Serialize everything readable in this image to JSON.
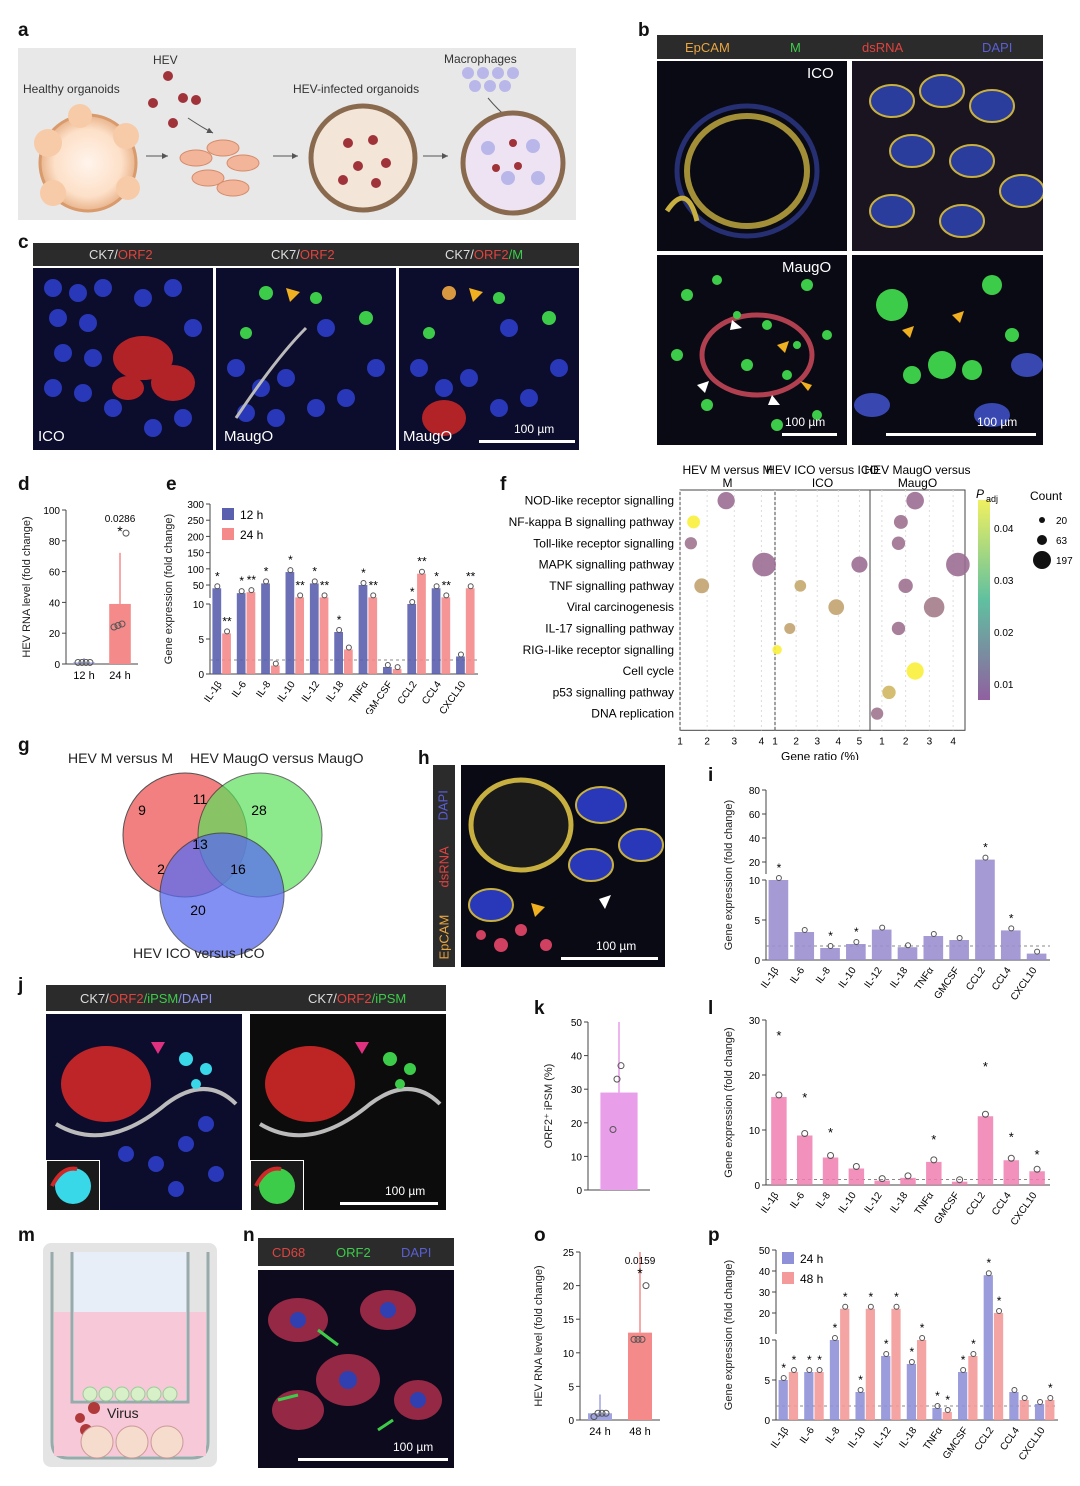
{
  "panels": {
    "a": "a",
    "b": "b",
    "c": "c",
    "d": "d",
    "e": "e",
    "f": "f",
    "g": "g",
    "h": "h",
    "i": "i",
    "j": "j",
    "k": "k",
    "l": "l",
    "m": "m",
    "n": "n",
    "o": "o",
    "p": "p"
  },
  "panel_a": {
    "healthy": "Healthy organoids",
    "hev": "HEV",
    "infected": "HEV-infected organoids",
    "macrophages": "Macrophages"
  },
  "panel_b": {
    "ch1": "EpCAM",
    "ch2": "M",
    "ch3": "dsRNA",
    "ch4": "DAPI",
    "ico": "ICO",
    "maugo": "MaugO",
    "scale1": "100 µm",
    "scale2": "100 µm"
  },
  "panel_c": {
    "h1_a": "CK7/",
    "h1_b": "ORF2",
    "h2_a": "CK7/",
    "h2_b": "ORF2",
    "h3_a": "CK7/",
    "h3_b": "ORF2",
    "h3_c": "/M",
    "l1": "ICO",
    "l2": "MaugO",
    "l3": "MaugO",
    "scale": "100 µm"
  },
  "panel_h": {
    "c1": "DAPI",
    "c2": "dsRNA",
    "c3": "EpCAM",
    "scale": "100 µm"
  },
  "panel_j": {
    "h1_a": "CK7/",
    "h1_b": "ORF2",
    "h1_c": "/iPSM",
    "h1_d": "/DAPI",
    "h2_a": "CK7/",
    "h2_b": "ORF2",
    "h2_c": "/iPSM",
    "scale": "100 µm"
  },
  "panel_m": {
    "virus": "Virus"
  },
  "panel_n": {
    "c1": "CD68",
    "c2": "ORF2",
    "c3": "DAPI",
    "scale": "100 µm"
  },
  "venn": {
    "set1": "HEV M versus M",
    "set2": "HEV MaugO versus MaugO",
    "set3": "HEV ICO versus ICO",
    "counts": {
      "only1": "9",
      "s12": "11",
      "only2": "28",
      "all": "13",
      "s13": "2",
      "s23": "16",
      "only3": "20"
    }
  },
  "chart_data": [
    {
      "id": "d",
      "type": "bar",
      "categories": [
        "12 h",
        "24 h"
      ],
      "values": [
        1,
        39
      ],
      "points": [
        [
          1,
          1,
          1,
          1
        ],
        [
          24,
          25,
          26,
          85
        ]
      ],
      "ylabel": "HEV RNA level (fold change)",
      "ylim": [
        0,
        100
      ],
      "yticks": [
        "0",
        "20",
        "40",
        "60",
        "80",
        "100"
      ],
      "p_value": "0.0286",
      "sig": "*"
    },
    {
      "id": "e",
      "type": "bar",
      "categories": [
        "IL-1β",
        "IL-6",
        "IL-8",
        "IL-10",
        "IL-12",
        "IL-18",
        "TNFα",
        "GM-CSF",
        "CCL2",
        "CCL4",
        "CXCL10"
      ],
      "series": [
        {
          "name": "12 h",
          "values": [
            40,
            25,
            55,
            90,
            55,
            6,
            50,
            1,
            10,
            40,
            2.5
          ]
        },
        {
          "name": "24 h",
          "values": [
            5.8,
            28,
            1.2,
            12,
            12,
            3.5,
            12,
            0.7,
            85,
            12,
            40
          ]
        }
      ],
      "ylabel": "Gene expression (fold change)",
      "yticks_low": [
        "0",
        "5",
        "10"
      ],
      "yticks_high": [
        "50",
        "100",
        "150",
        "200",
        "250",
        "300"
      ],
      "sig12": [
        "*",
        "*",
        "*",
        "*",
        "*",
        "*",
        "*",
        "",
        "*",
        "*",
        ""
      ],
      "sig24": [
        "**",
        "**",
        "",
        "**",
        "**",
        "",
        "**",
        "",
        "**",
        "**",
        "**"
      ]
    },
    {
      "id": "f",
      "type": "scatter",
      "panels": [
        {
          "title": "HEV M versus M",
          "title2": "M",
          "xticks": [
            "1",
            "2",
            "3",
            "4"
          ]
        },
        {
          "title": "HEV ICO versus ICO",
          "title2": "ICO",
          "xticks": [
            "1",
            "2",
            "3",
            "4",
            "5"
          ]
        },
        {
          "title": "HEV MaugO versus",
          "title2": "MaugO",
          "xticks": [
            "1",
            "2",
            "3",
            "4"
          ]
        }
      ],
      "pathways": [
        "NOD-like receptor signalling",
        "NF-kappa B signalling pathway",
        "Toll-like receptor signalling",
        "MAPK signalling pathway",
        "TNF signalling pathway",
        "Viral carcinogenesis",
        "IL-17 signalling pathway",
        "RIG-I-like receptor signalling",
        "Cell cycle",
        "p53 signalling pathway",
        "DNA replication"
      ],
      "points": [
        [
          0,
          0,
          2.7,
          0.006,
          90
        ],
        [
          0,
          1,
          1.5,
          0.045,
          40
        ],
        [
          0,
          2,
          1.4,
          0.008,
          35
        ],
        [
          0,
          3,
          4.1,
          0.006,
          197
        ],
        [
          0,
          4,
          1.8,
          0.022,
          60
        ],
        [
          1,
          3,
          5.0,
          0.006,
          75
        ],
        [
          1,
          4,
          2.2,
          0.023,
          30
        ],
        [
          1,
          5,
          3.9,
          0.022,
          70
        ],
        [
          1,
          6,
          1.7,
          0.022,
          25
        ],
        [
          1,
          7,
          1.1,
          0.045,
          15
        ],
        [
          2,
          0,
          2.4,
          0.006,
          95
        ],
        [
          2,
          1,
          1.8,
          0.007,
          50
        ],
        [
          2,
          2,
          1.7,
          0.007,
          45
        ],
        [
          2,
          3,
          4.2,
          0.006,
          197
        ],
        [
          2,
          4,
          2.0,
          0.007,
          55
        ],
        [
          2,
          5,
          3.2,
          0.01,
          140
        ],
        [
          2,
          6,
          1.7,
          0.007,
          45
        ],
        [
          2,
          8,
          2.4,
          0.045,
          90
        ],
        [
          2,
          9,
          1.3,
          0.028,
          45
        ],
        [
          2,
          10,
          0.8,
          0.008,
          35
        ]
      ],
      "xlabel": "Gene ratio (%)",
      "colorbar_label": "P",
      "colorbar_sub": "adj",
      "colorbar_ticks": [
        "0.04",
        "0.03",
        "0.02",
        "0.01"
      ],
      "size_label": "Count",
      "sizes": [
        "20",
        "63",
        "197"
      ]
    },
    {
      "id": "i",
      "type": "bar",
      "categories": [
        "IL-1β",
        "IL-6",
        "IL-8",
        "IL-10",
        "IL-12",
        "IL-18",
        "TNFα",
        "GMCSF",
        "CCL2",
        "CCL4",
        "CXCL10"
      ],
      "values": [
        10,
        3.5,
        1.5,
        2,
        3.8,
        1.6,
        3,
        2.5,
        22,
        3.7,
        0.8
      ],
      "sig": [
        "*",
        "",
        "*",
        "*",
        "",
        "",
        "",
        "",
        "*",
        "*",
        ""
      ],
      "ylabel": "Gene expression (fold change)",
      "yticks_low": [
        "0",
        "5",
        "10"
      ],
      "yticks_high": [
        "20",
        "40",
        "60",
        "80"
      ]
    },
    {
      "id": "k",
      "type": "bar",
      "categories": [
        ""
      ],
      "values": [
        29
      ],
      "points": [
        [
          18,
          33,
          37
        ]
      ],
      "ylabel": "ORF2⁺ iPSM (%)",
      "ylim": [
        0,
        50
      ],
      "yticks": [
        "0",
        "10",
        "20",
        "30",
        "40",
        "50"
      ]
    },
    {
      "id": "l",
      "type": "bar",
      "categories": [
        "IL-1β",
        "IL-6",
        "IL-8",
        "IL-10",
        "IL-12",
        "IL-18",
        "TNFα",
        "GMCSF",
        "CCL2",
        "CCL4",
        "CXCL10"
      ],
      "values": [
        16,
        9,
        5,
        3,
        0.8,
        1.3,
        4.2,
        0.6,
        12.5,
        4.5,
        2.5
      ],
      "sig": [
        "*",
        "*",
        "*",
        "",
        "",
        "",
        "*",
        "",
        "*",
        "*",
        "*"
      ],
      "ylabel": "Gene expression (fold change)",
      "ylim": [
        0,
        30
      ],
      "yticks": [
        "0",
        "10",
        "20",
        "30"
      ]
    },
    {
      "id": "o",
      "type": "bar",
      "categories": [
        "24 h",
        "48 h"
      ],
      "values": [
        1,
        13
      ],
      "points": [
        [
          0.5,
          1,
          1,
          1
        ],
        [
          12,
          12,
          12,
          20
        ]
      ],
      "ylabel": "HEV RNA level (fold change)",
      "ylim": [
        0,
        25
      ],
      "yticks": [
        "0",
        "5",
        "10",
        "15",
        "20",
        "25"
      ],
      "p_value": "0.0159",
      "sig": "*"
    },
    {
      "id": "p",
      "type": "bar",
      "categories": [
        "IL-1β",
        "IL-6",
        "IL-8",
        "IL-10",
        "IL-12",
        "IL-18",
        "TNFα",
        "GMCSF",
        "CCL2",
        "CCL4",
        "CXCL10"
      ],
      "series": [
        {
          "name": "24 h",
          "values": [
            5,
            6,
            10,
            3.5,
            8,
            7,
            1.5,
            6,
            38,
            3.5,
            2
          ]
        },
        {
          "name": "48 h",
          "values": [
            6,
            6,
            22,
            22,
            22,
            10,
            1,
            8,
            20,
            2.5,
            2.5
          ]
        }
      ],
      "sig24": [
        "*",
        "*",
        "*",
        "*",
        "*",
        "*",
        "*",
        "*",
        "*",
        "",
        ""
      ],
      "sig48": [
        "*",
        "*",
        "*",
        "*",
        "*",
        "*",
        "*",
        "*",
        "*",
        "",
        "*"
      ],
      "ylabel": "Gene expression (fold change)",
      "yticks_low": [
        "0",
        "5",
        "10"
      ],
      "yticks_high": [
        "20",
        "30",
        "40",
        "50"
      ]
    }
  ],
  "colors": {
    "blue": "#5a5fae",
    "red": "#f08080",
    "purple": "#9c8fd0",
    "pink": "#f07fb0",
    "violet": "#e89ee8",
    "salmon": "#f48a8a"
  }
}
